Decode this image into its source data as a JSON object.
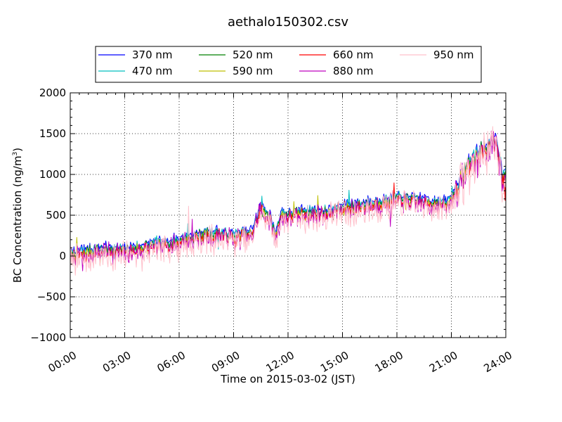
{
  "chart_data": {
    "type": "line",
    "title": "aethalo150302.csv",
    "xlabel": "Time on 2015-03-02 (JST)",
    "ylabel_prefix": "BC Concentration (ng/m",
    "ylabel_sup": "3",
    "ylabel_suffix": ")",
    "xlim": [
      0,
      24
    ],
    "ylim": [
      -1000,
      2000
    ],
    "grid": true,
    "legend_position": "top-center",
    "x_ticks": [
      0,
      3,
      6,
      9,
      12,
      15,
      18,
      21,
      24
    ],
    "x_tick_labels": [
      "00:00",
      "03:00",
      "06:00",
      "09:00",
      "12:00",
      "15:00",
      "18:00",
      "21:00",
      "24:00"
    ],
    "y_ticks": [
      -1000,
      -500,
      0,
      500,
      1000,
      1500,
      2000
    ],
    "y_tick_labels": [
      "−1000",
      "−500",
      "0",
      "500",
      "1000",
      "1500",
      "2000"
    ],
    "x_units": "hours since 00:00",
    "trend_knots_x": [
      0,
      1,
      2,
      3,
      4,
      5,
      6,
      7,
      8,
      9,
      10,
      10.5,
      11,
      11.3,
      11.6,
      12,
      13,
      14,
      15,
      16,
      17,
      18,
      19,
      20,
      20.8,
      21.2,
      22,
      23,
      23.5,
      23.8,
      24
    ],
    "trend_knots_y": [
      20,
      60,
      80,
      70,
      110,
      140,
      190,
      250,
      280,
      250,
      280,
      600,
      470,
      250,
      500,
      500,
      540,
      530,
      600,
      620,
      660,
      700,
      690,
      660,
      640,
      800,
      1150,
      1350,
      1400,
      1000,
      1100
    ],
    "series": [
      {
        "name": "370 nm",
        "color": "#0000ff",
        "offset": 40,
        "noise": 45,
        "seed": 11
      },
      {
        "name": "470 nm",
        "color": "#00bfbf",
        "offset": 20,
        "noise": 50,
        "seed": 23
      },
      {
        "name": "520 nm",
        "color": "#008000",
        "offset": 0,
        "noise": 55,
        "seed": 37
      },
      {
        "name": "590 nm",
        "color": "#bfbf00",
        "offset": -20,
        "noise": 60,
        "seed": 41
      },
      {
        "name": "660 nm",
        "color": "#ff0000",
        "offset": -30,
        "noise": 70,
        "seed": 53
      },
      {
        "name": "880 nm",
        "color": "#bf00bf",
        "offset": -40,
        "noise": 95,
        "seed": 67
      },
      {
        "name": "950 nm",
        "color": "#ffc0cb",
        "offset": -80,
        "noise": 130,
        "seed": 79
      }
    ]
  }
}
